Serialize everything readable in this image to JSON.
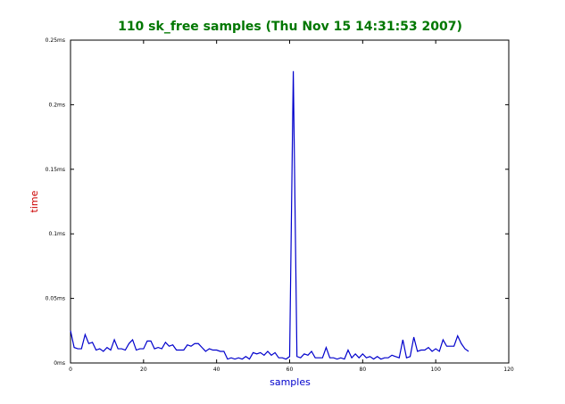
{
  "chart_data": {
    "type": "line",
    "title": "110 sk_free samples (Thu Nov 15 14:31:53 2007)",
    "xlabel": "samples",
    "ylabel": "time",
    "xlim": [
      0,
      120
    ],
    "ylim": [
      0,
      0.25
    ],
    "x_ticks": [
      {
        "value": 0,
        "label": "0"
      },
      {
        "value": 20,
        "label": "20"
      },
      {
        "value": 40,
        "label": "40"
      },
      {
        "value": 60,
        "label": "60"
      },
      {
        "value": 80,
        "label": "80"
      },
      {
        "value": 100,
        "label": "100"
      },
      {
        "value": 120,
        "label": "120"
      }
    ],
    "y_ticks": [
      {
        "value": 0,
        "label": "0ms"
      },
      {
        "value": 0.05,
        "label": "0.05ms"
      },
      {
        "value": 0.1,
        "label": "0.1ms"
      },
      {
        "value": 0.15,
        "label": "0.15ms"
      },
      {
        "value": 0.2,
        "label": "0.2ms"
      },
      {
        "value": 0.25,
        "label": "0.25ms"
      }
    ],
    "grid": false,
    "colors": {
      "title": "#007700",
      "xlabel": "#0000cc",
      "ylabel": "#cc0000",
      "line": "#0000cc"
    },
    "series": [
      {
        "values": [
          0.025,
          0.012,
          0.011,
          0.011,
          0.022,
          0.015,
          0.016,
          0.01,
          0.011,
          0.009,
          0.012,
          0.01,
          0.018,
          0.011,
          0.011,
          0.01,
          0.015,
          0.018,
          0.01,
          0.011,
          0.011,
          0.017,
          0.017,
          0.011,
          0.012,
          0.011,
          0.016,
          0.013,
          0.014,
          0.01,
          0.01,
          0.01,
          0.014,
          0.013,
          0.015,
          0.015,
          0.012,
          0.009,
          0.011,
          0.01,
          0.01,
          0.009,
          0.009,
          0.003,
          0.004,
          0.003,
          0.004,
          0.003,
          0.005,
          0.003,
          0.008,
          0.007,
          0.008,
          0.006,
          0.009,
          0.006,
          0.008,
          0.004,
          0.004,
          0.003,
          0.005,
          0.226,
          0.005,
          0.004,
          0.007,
          0.006,
          0.009,
          0.004,
          0.004,
          0.004,
          0.012,
          0.004,
          0.004,
          0.003,
          0.004,
          0.003,
          0.01,
          0.004,
          0.007,
          0.004,
          0.007,
          0.004,
          0.005,
          0.003,
          0.005,
          0.003,
          0.004,
          0.004,
          0.006,
          0.005,
          0.004,
          0.018,
          0.004,
          0.005,
          0.02,
          0.009,
          0.01,
          0.01,
          0.012,
          0.009,
          0.011,
          0.009,
          0.018,
          0.013,
          0.013,
          0.013,
          0.021,
          0.015,
          0.011,
          0.009
        ]
      }
    ]
  }
}
